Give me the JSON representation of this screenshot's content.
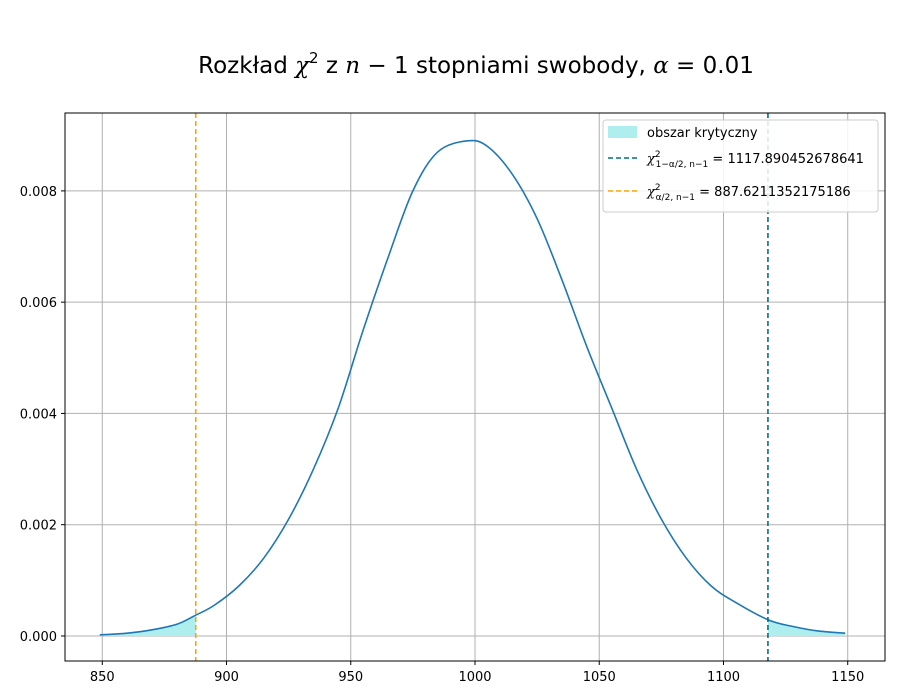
{
  "chart_data": {
    "type": "line",
    "title": {
      "prefix": "Rozkład ",
      "chi": "χ",
      "sup": "2",
      "z": " z ",
      "n": "n",
      "minus1": " − 1",
      "stopnie": " stopniami swobody, ",
      "alpha": "α",
      "eq": " = 0.01"
    },
    "xlabel": "",
    "ylabel": "",
    "xlim": [
      835,
      1165
    ],
    "ylim": [
      -0.00045,
      0.0094
    ],
    "xticks": [
      850,
      900,
      950,
      1000,
      1050,
      1100,
      1150
    ],
    "xtick_labels": [
      "850",
      "900",
      "950",
      "1000",
      "1050",
      "1100",
      "1150"
    ],
    "yticks": [
      0.0,
      0.002,
      0.004,
      0.006,
      0.008
    ],
    "ytick_labels": [
      "0.000",
      "0.002",
      "0.004",
      "0.006",
      "0.008"
    ],
    "grid": true,
    "legend_position": "top-right",
    "series": [
      {
        "kind": "pdf-curve",
        "color": "#1f77b4",
        "x": [
          849,
          860,
          870,
          880,
          887,
          895,
          905,
          915,
          925,
          935,
          945,
          955,
          965,
          975,
          985,
          997,
          1005,
          1015,
          1025,
          1035,
          1045,
          1055,
          1065,
          1075,
          1085,
          1095,
          1105,
          1118,
          1128,
          1138,
          1149
        ],
        "y": [
          2e-05,
          5e-05,
          0.00011,
          0.00021,
          0.00036,
          0.00055,
          0.0009,
          0.0014,
          0.0021,
          0.003,
          0.0041,
          0.0055,
          0.0068,
          0.008,
          0.0087,
          0.0089,
          0.0088,
          0.0083,
          0.0075,
          0.0064,
          0.0052,
          0.0041,
          0.003,
          0.0021,
          0.0014,
          0.0009,
          0.0006,
          0.00029,
          0.00017,
          9e-05,
          5e-05
        ]
      }
    ],
    "critical_regions": {
      "label": "obszar krytyczny",
      "color": "#aeeeee",
      "left": [
        849,
        887.6211352175186
      ],
      "right": [
        1117.890452678641,
        1149
      ]
    },
    "critical_lines": [
      {
        "x": 1117.890452678641,
        "color": "#007080",
        "label_chi": "χ",
        "label_sup": "2",
        "label_sub": "1−α/2, n−1",
        "label_value": " = 1117.890452678641"
      },
      {
        "x": 887.6211352175186,
        "color": "#ffa500",
        "label_chi": "χ",
        "label_sup": "2",
        "label_sub": "α/2, n−1",
        "label_value": " = 887.6211352175186"
      }
    ]
  }
}
